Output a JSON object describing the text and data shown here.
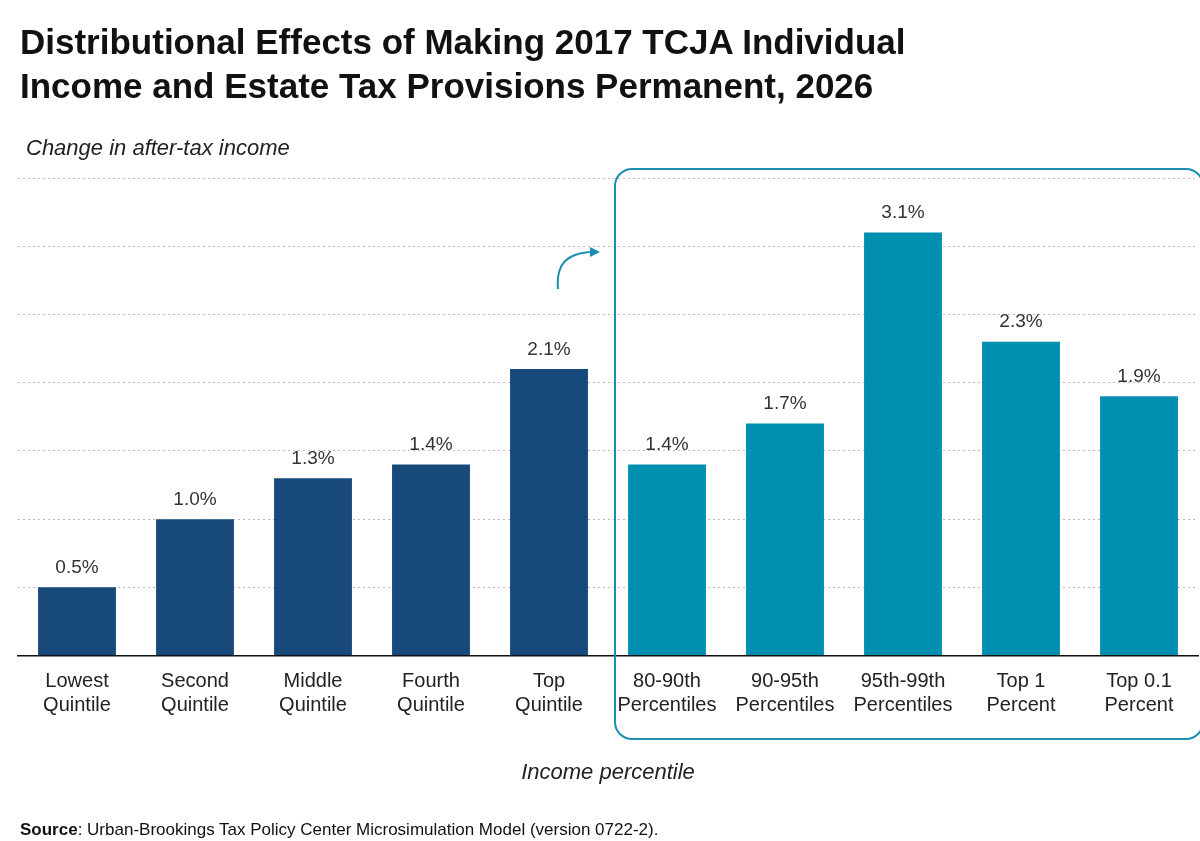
{
  "chart_data": {
    "type": "bar",
    "title": "Distributional Effects of Making 2017 TCJA Individual Income and Estate Tax Provisions Permanent, 2026",
    "ylabel": "Change in after-tax income",
    "xlabel": "Income percentile",
    "categories": [
      "Lowest Quintile",
      "Second Quintile",
      "Middle Quintile",
      "Fourth Quintile",
      "Top Quintile",
      "80-90th Percentiles",
      "90-95th Percentiles",
      "95th-99th Percentiles",
      "Top 1 Percent",
      "Top 0.1 Percent"
    ],
    "values": [
      0.5,
      1.0,
      1.3,
      1.4,
      2.1,
      1.4,
      1.7,
      3.1,
      2.3,
      1.9
    ],
    "value_labels": [
      "0.5%",
      "1.0%",
      "1.3%",
      "1.4%",
      "2.1%",
      "1.4%",
      "1.7%",
      "3.1%",
      "2.3%",
      "1.9%"
    ],
    "colors": [
      "#17497a",
      "#17497a",
      "#17497a",
      "#17497a",
      "#17497a",
      "#008fb0",
      "#008fb0",
      "#008fb0",
      "#008fb0",
      "#008fb0"
    ],
    "ylim": [
      0,
      3.5
    ],
    "yticks": [
      {
        "value": 0,
        "label": null
      },
      {
        "value": 0.5,
        "label": null
      },
      {
        "value": 1,
        "label": null
      },
      {
        "value": 1.5,
        "label": null
      },
      {
        "value": 2,
        "label": null
      },
      {
        "value": 2.5,
        "label": null
      },
      {
        "value": 3,
        "label": null
      },
      {
        "value": 3.5,
        "label": null
      }
    ],
    "tick_labels": "x",
    "grid": "y",
    "legend": false,
    "annotations": [
      "Source: Urban-Brookings Tax Policy Center Microsimulation Model (version 0722-2)."
    ]
  }
}
